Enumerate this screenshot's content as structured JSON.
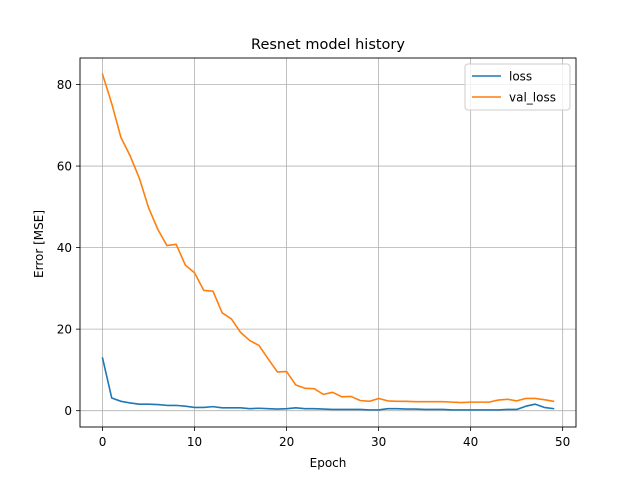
{
  "chart_data": {
    "type": "line",
    "title": "Resnet model history",
    "xlabel": "Epoch",
    "ylabel": "Error [MSE]",
    "xlim": [
      -2.45,
      51.45
    ],
    "ylim": [
      -4.0,
      86.5
    ],
    "xticks": [
      0,
      10,
      20,
      30,
      40,
      50
    ],
    "yticks": [
      0,
      20,
      40,
      60,
      80
    ],
    "grid": true,
    "legend_position": "top-right",
    "x": [
      0,
      1,
      2,
      3,
      4,
      5,
      6,
      7,
      8,
      9,
      10,
      11,
      12,
      13,
      14,
      15,
      16,
      17,
      18,
      19,
      20,
      21,
      22,
      23,
      24,
      25,
      26,
      27,
      28,
      29,
      30,
      31,
      32,
      33,
      34,
      35,
      36,
      37,
      38,
      39,
      40,
      41,
      42,
      43,
      44,
      45,
      46,
      47,
      48,
      49
    ],
    "series": [
      {
        "name": "loss",
        "color": "#1f77b4",
        "values": [
          12.9,
          3.1,
          2.3,
          1.9,
          1.6,
          1.6,
          1.5,
          1.3,
          1.3,
          1.1,
          0.8,
          0.8,
          1.0,
          0.7,
          0.7,
          0.7,
          0.5,
          0.6,
          0.5,
          0.4,
          0.5,
          0.7,
          0.5,
          0.5,
          0.4,
          0.3,
          0.3,
          0.3,
          0.3,
          0.2,
          0.2,
          0.5,
          0.5,
          0.4,
          0.4,
          0.3,
          0.3,
          0.3,
          0.2,
          0.2,
          0.2,
          0.2,
          0.2,
          0.2,
          0.3,
          0.3,
          1.1,
          1.6,
          0.8,
          0.5
        ]
      },
      {
        "name": "val_loss",
        "color": "#ff7f0e",
        "values": [
          82.5,
          75.3,
          67.0,
          62.5,
          57.0,
          49.8,
          44.5,
          40.5,
          40.8,
          35.7,
          33.8,
          29.5,
          29.3,
          24.0,
          22.5,
          19.2,
          17.2,
          16.0,
          12.7,
          9.5,
          9.6,
          6.3,
          5.5,
          5.4,
          4.0,
          4.5,
          3.4,
          3.5,
          2.5,
          2.3,
          3.0,
          2.4,
          2.3,
          2.3,
          2.2,
          2.2,
          2.2,
          2.2,
          2.1,
          2.0,
          2.1,
          2.1,
          2.1,
          2.6,
          2.8,
          2.4,
          3.0,
          3.0,
          2.7,
          2.3
        ]
      }
    ]
  }
}
